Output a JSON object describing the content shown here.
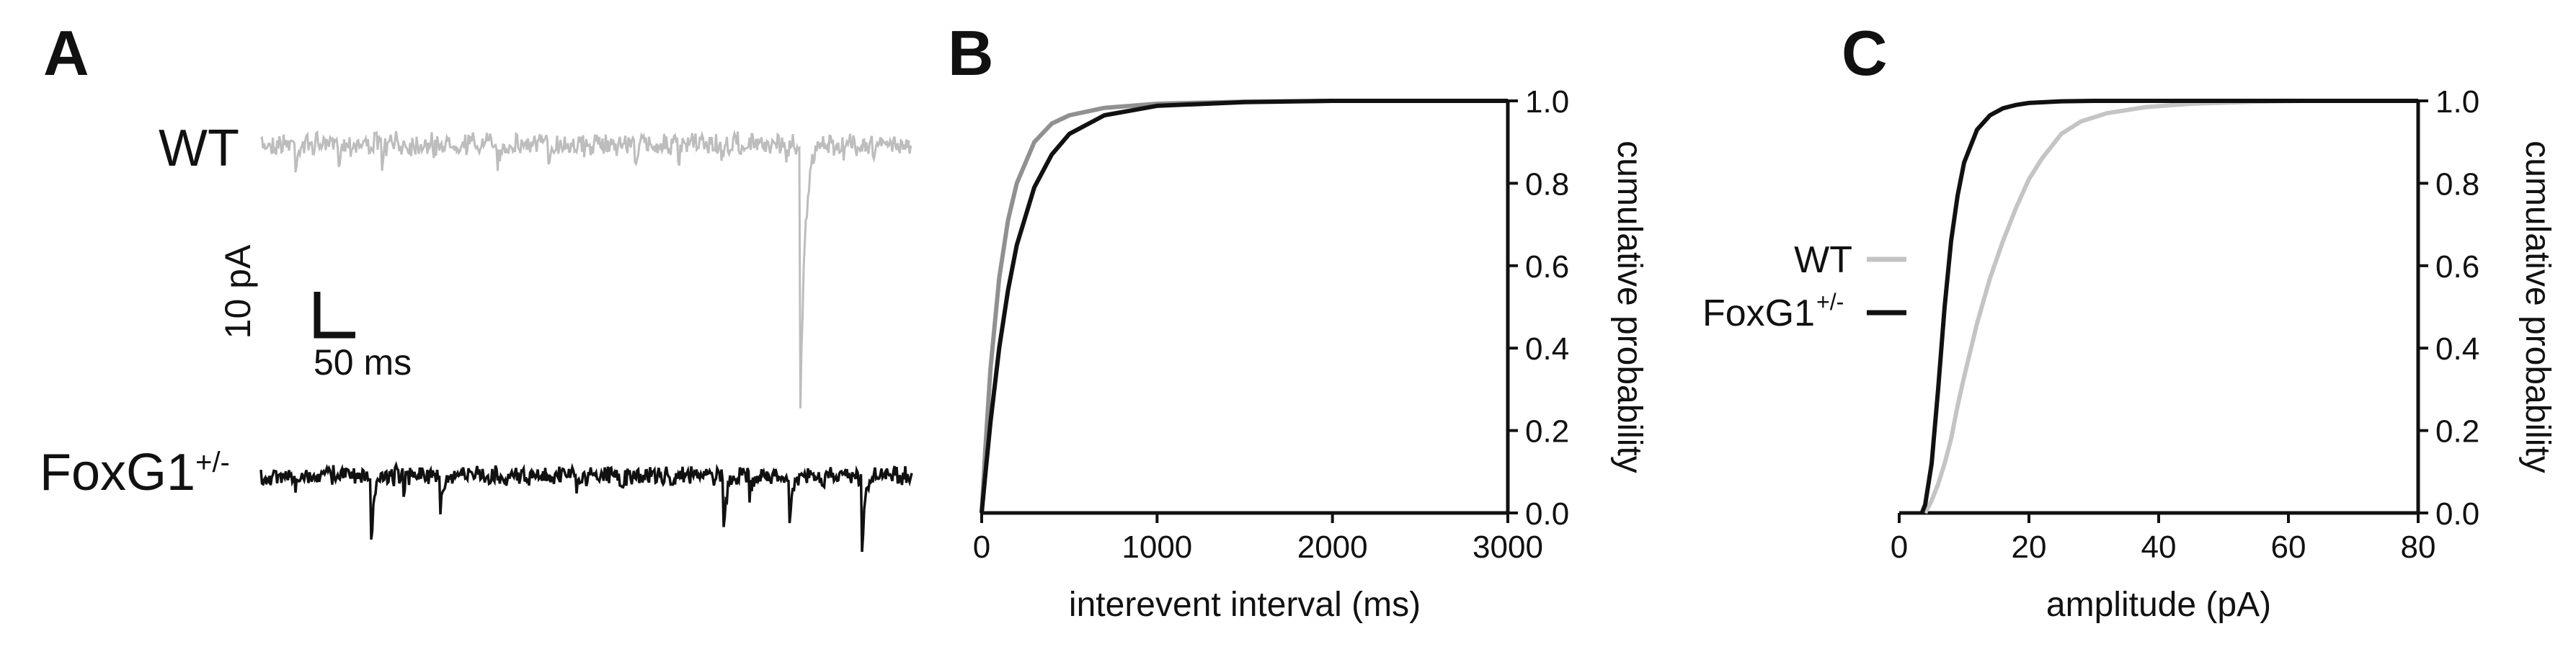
{
  "panel_a": {
    "letter": "A",
    "wt_label": "WT",
    "foxg1_label": "FoxG1",
    "foxg1_sup": "+/-",
    "scale_y_label": "10 pA",
    "scale_x_label": "50 ms",
    "wt_color": "#bdbdbd",
    "foxg1_color": "#111111"
  },
  "panel_b": {
    "letter": "B"
  },
  "panel_c": {
    "letter": "C"
  },
  "legend": {
    "wt": "WT",
    "foxg1": "FoxG1",
    "foxg1_sup": "+/-"
  },
  "chart_data": [
    {
      "type": "line",
      "panel": "B",
      "xlabel": "interevent interval (ms)",
      "ylabel": "cumulative probability",
      "xlim": [
        0,
        3000
      ],
      "ylim": [
        0,
        1
      ],
      "xticks": [
        "0",
        "1000",
        "2000",
        "3000"
      ],
      "yticks": [
        "0.0",
        "0.2",
        "0.4",
        "0.6",
        "0.8",
        "1.0"
      ],
      "series": [
        {
          "name": "WT",
          "color": "#909090",
          "x": [
            0,
            20,
            50,
            100,
            150,
            200,
            300,
            400,
            500,
            700,
            1000,
            1500,
            2000,
            3000
          ],
          "y": [
            0,
            0.15,
            0.35,
            0.57,
            0.71,
            0.8,
            0.9,
            0.945,
            0.965,
            0.983,
            0.993,
            0.998,
            1.0,
            1.0
          ]
        },
        {
          "name": "FoxG1+/-",
          "color": "#111111",
          "x": [
            0,
            20,
            50,
            100,
            150,
            200,
            300,
            400,
            500,
            700,
            1000,
            1500,
            2000,
            3000
          ],
          "y": [
            0,
            0.09,
            0.22,
            0.4,
            0.54,
            0.65,
            0.79,
            0.87,
            0.92,
            0.965,
            0.988,
            0.997,
            1.0,
            1.0
          ]
        }
      ]
    },
    {
      "type": "line",
      "panel": "C",
      "xlabel": "amplitude (pA)",
      "ylabel": "cumulative probability",
      "xlim": [
        0,
        80
      ],
      "ylim": [
        0,
        1
      ],
      "xticks": [
        "0",
        "20",
        "40",
        "60",
        "80"
      ],
      "yticks": [
        "0.0",
        "0.2",
        "0.4",
        "0.6",
        "0.8",
        "1.0"
      ],
      "series": [
        {
          "name": "WT",
          "color": "#c4c4c4",
          "x": [
            4,
            5,
            6,
            7,
            8,
            9,
            10,
            12,
            14,
            16,
            18,
            20,
            22,
            25,
            28,
            32,
            38,
            45,
            55,
            62,
            80
          ],
          "y": [
            0,
            0.03,
            0.07,
            0.12,
            0.18,
            0.26,
            0.33,
            0.46,
            0.57,
            0.66,
            0.74,
            0.81,
            0.86,
            0.92,
            0.95,
            0.97,
            0.985,
            0.993,
            0.998,
            1.0,
            1.0
          ]
        },
        {
          "name": "FoxG1+/-",
          "color": "#111111",
          "x": [
            3.5,
            4,
            5,
            6,
            7,
            8,
            9,
            10,
            12,
            14,
            16,
            18,
            20,
            25,
            30,
            80
          ],
          "y": [
            0,
            0.02,
            0.12,
            0.3,
            0.5,
            0.66,
            0.77,
            0.85,
            0.93,
            0.965,
            0.982,
            0.99,
            0.995,
            0.999,
            1.0,
            1.0
          ]
        }
      ]
    }
  ]
}
